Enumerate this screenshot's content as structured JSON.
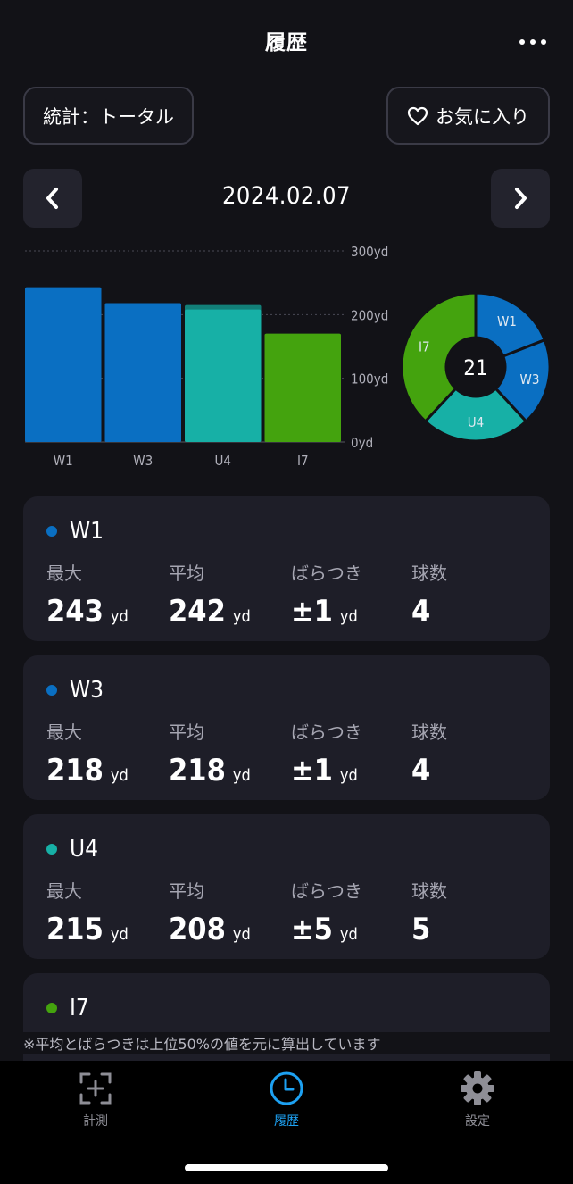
{
  "header": {
    "title": "履歴",
    "more_icon": "more-horizontal-icon"
  },
  "stats_button": {
    "label": "統計：トータル"
  },
  "favorite_button": {
    "label": "お気に入り",
    "icon": "heart-icon"
  },
  "date_nav": {
    "date": "2024.02.07",
    "prev_icon": "chevron-left-icon",
    "next_icon": "chevron-right-icon"
  },
  "chart_data": [
    {
      "type": "bar",
      "categories": [
        "W1",
        "W3",
        "U4",
        "I7"
      ],
      "series": [
        {
          "values": [
            243,
            218,
            215,
            170
          ]
        },
        {
          "values": [
            242,
            218,
            208,
            170
          ]
        }
      ],
      "colors": [
        "#0a6fc2",
        "#0a6fc2",
        "#17b0a6",
        "#44a30e"
      ],
      "max_colors": [
        "#0a6fc2",
        "#0a6fc2",
        "#127f78",
        "#44a30e"
      ],
      "ylim": [
        0,
        300
      ],
      "yticks": [
        "0yd",
        "100yd",
        "200yd",
        "300yd"
      ],
      "ytick_values": [
        0,
        100,
        200,
        300
      ],
      "grid": true
    },
    {
      "type": "pie",
      "labels": [
        "W1",
        "W3",
        "U4",
        "I7"
      ],
      "values": [
        4,
        4,
        5,
        8
      ],
      "colors": [
        "#0a6fc2",
        "#0a6fc2",
        "#17b0a6",
        "#44a30e"
      ],
      "center_label": "21"
    }
  ],
  "clubs": [
    {
      "name": "W1",
      "color": "#0a6fc2",
      "max_label": "最大",
      "max": "243",
      "avg_label": "平均",
      "avg": "242",
      "spread_label": "ばらつき",
      "spread": "±1",
      "count_label": "球数",
      "count": "4",
      "unit": "yd"
    },
    {
      "name": "W3",
      "color": "#0a6fc2",
      "max_label": "最大",
      "max": "218",
      "avg_label": "平均",
      "avg": "218",
      "spread_label": "ばらつき",
      "spread": "±1",
      "count_label": "球数",
      "count": "4",
      "unit": "yd"
    },
    {
      "name": "U4",
      "color": "#17b0a6",
      "max_label": "最大",
      "max": "215",
      "avg_label": "平均",
      "avg": "208",
      "spread_label": "ばらつき",
      "spread": "±5",
      "count_label": "球数",
      "count": "5",
      "unit": "yd"
    },
    {
      "name": "I7",
      "color": "#44a30e"
    }
  ],
  "footnote": "※平均とばらつきは上位50%の値を元に算出しています",
  "tabbar": {
    "tabs": [
      {
        "label": "計測",
        "icon": "measure-icon"
      },
      {
        "label": "履歴",
        "icon": "clock-icon",
        "active": true
      },
      {
        "label": "設定",
        "icon": "gear-icon"
      }
    ],
    "active_color": "#1da1f2"
  }
}
